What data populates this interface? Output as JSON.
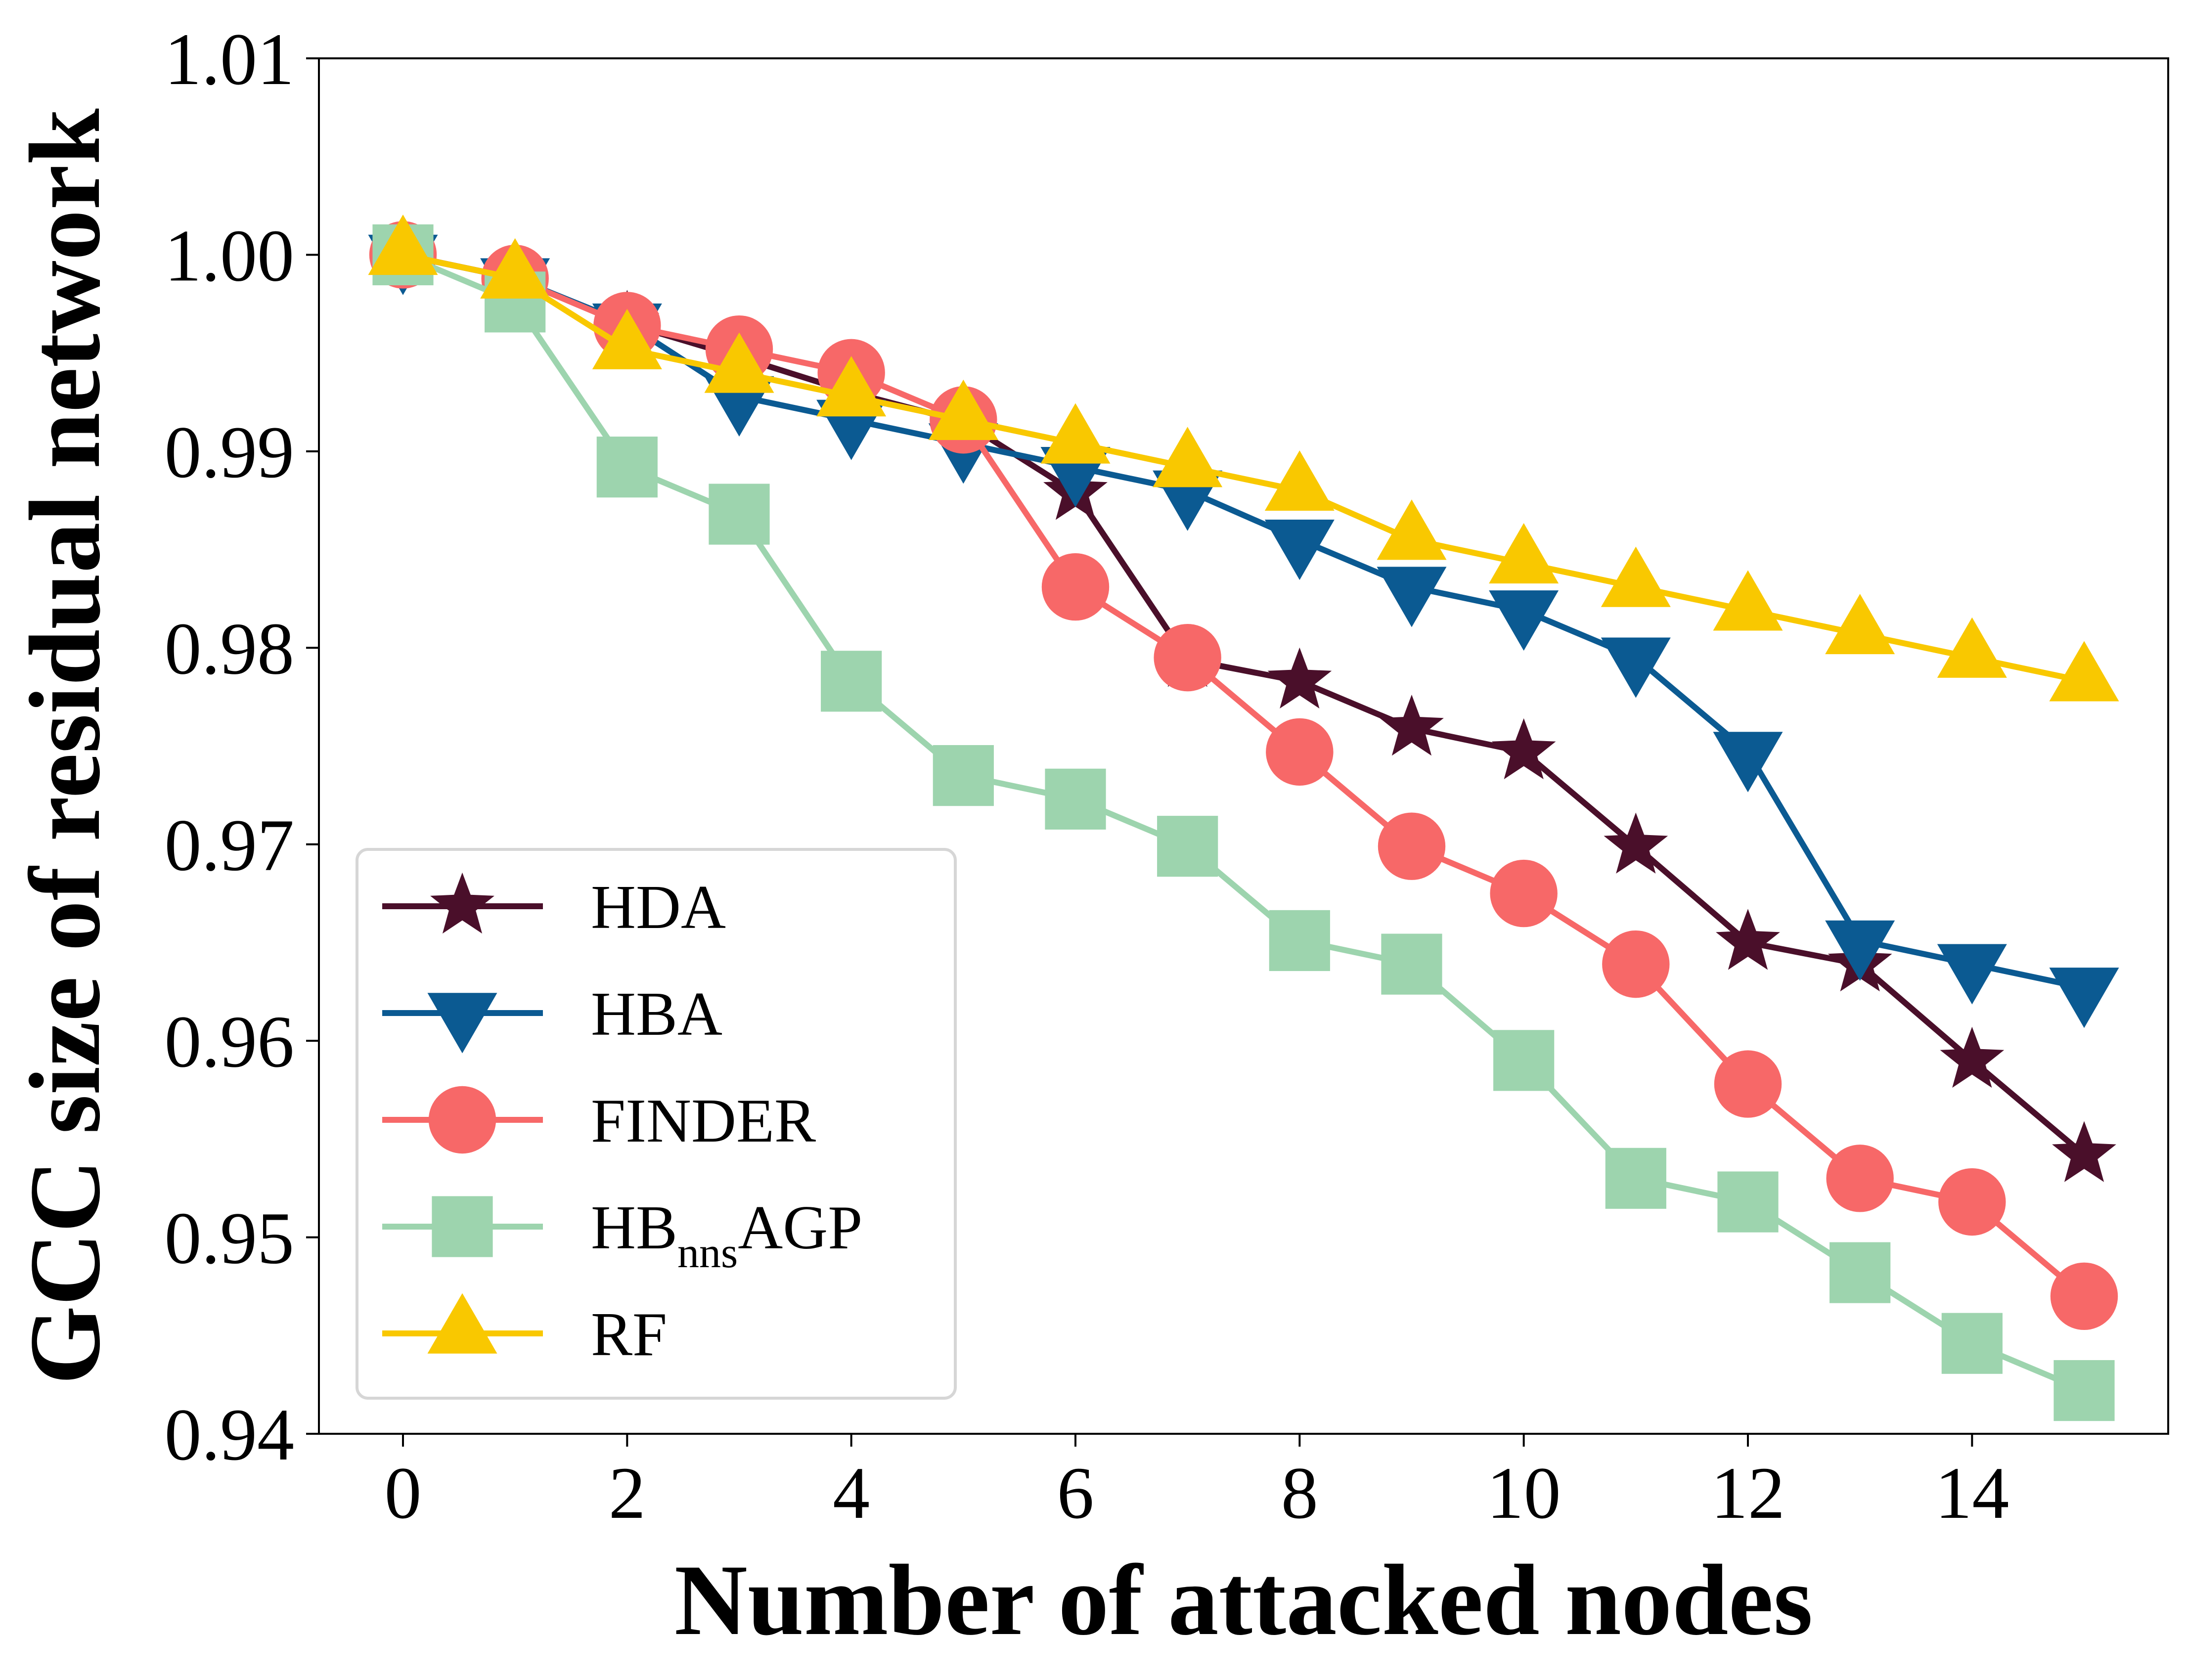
{
  "chart_data": {
    "type": "line",
    "title": "",
    "xlabel": "Number of attacked nodes",
    "ylabel": "GCC size of residual network",
    "xlim": [
      -0.75,
      15.75
    ],
    "ylim": [
      0.94,
      1.01
    ],
    "xticks": [
      0,
      2,
      4,
      6,
      8,
      10,
      12,
      14
    ],
    "xtick_labels": [
      "0",
      "2",
      "4",
      "6",
      "8",
      "10",
      "12",
      "14"
    ],
    "yticks": [
      0.94,
      0.95,
      0.96,
      0.97,
      0.98,
      0.99,
      1.0,
      1.01
    ],
    "ytick_labels": [
      "0.94",
      "0.95",
      "0.96",
      "0.97",
      "0.98",
      "0.99",
      "1.00",
      "1.01"
    ],
    "grid": false,
    "legend_position": "lower-left",
    "x": [
      0,
      1,
      2,
      3,
      4,
      5,
      6,
      7,
      8,
      9,
      10,
      11,
      12,
      13,
      14,
      15
    ],
    "series": [
      {
        "name": "HDA",
        "legend_main": "HDA",
        "legend_sub": "",
        "legend_tail": "",
        "color": "#4a0f2a",
        "marker": "star",
        "values": [
          1.0,
          0.9988,
          0.9965,
          0.9948,
          0.993,
          0.9915,
          0.9879,
          0.9794,
          0.9783,
          0.9759,
          0.9747,
          0.9699,
          0.965,
          0.9639,
          0.959,
          0.9542
        ]
      },
      {
        "name": "HBA",
        "legend_main": "HBA",
        "legend_sub": "",
        "legend_tail": "",
        "color": "#0b5a92",
        "marker": "triangle-down",
        "values": [
          1.0,
          0.9988,
          0.9965,
          0.9928,
          0.9916,
          0.9904,
          0.9892,
          0.988,
          0.9855,
          0.9831,
          0.9819,
          0.9795,
          0.9747,
          0.9651,
          0.9639,
          0.9627
        ]
      },
      {
        "name": "FINDER",
        "legend_main": "FINDER",
        "legend_sub": "",
        "legend_tail": "",
        "color": "#f76868",
        "marker": "circle",
        "values": [
          1.0,
          0.9988,
          0.9964,
          0.9952,
          0.994,
          0.9916,
          0.9831,
          0.9795,
          0.9747,
          0.9699,
          0.9675,
          0.9639,
          0.9578,
          0.953,
          0.9518,
          0.947
        ]
      },
      {
        "name": "HBnnsAGP",
        "legend_main": "HB",
        "legend_sub": "nns",
        "legend_tail": "AGP",
        "color": "#9dd4ae",
        "marker": "square",
        "values": [
          1.0,
          0.9976,
          0.9892,
          0.9868,
          0.9783,
          0.9735,
          0.9723,
          0.9699,
          0.9651,
          0.9639,
          0.959,
          0.953,
          0.9518,
          0.9482,
          0.9446,
          0.9422
        ]
      },
      {
        "name": "RF",
        "legend_main": "RF",
        "legend_sub": "",
        "legend_tail": "",
        "color": "#f9c800",
        "marker": "triangle-up",
        "values": [
          1.0,
          0.9988,
          0.9952,
          0.994,
          0.9928,
          0.9916,
          0.9904,
          0.9892,
          0.988,
          0.9855,
          0.9843,
          0.9831,
          0.9819,
          0.9807,
          0.9795,
          0.9783
        ]
      }
    ]
  }
}
